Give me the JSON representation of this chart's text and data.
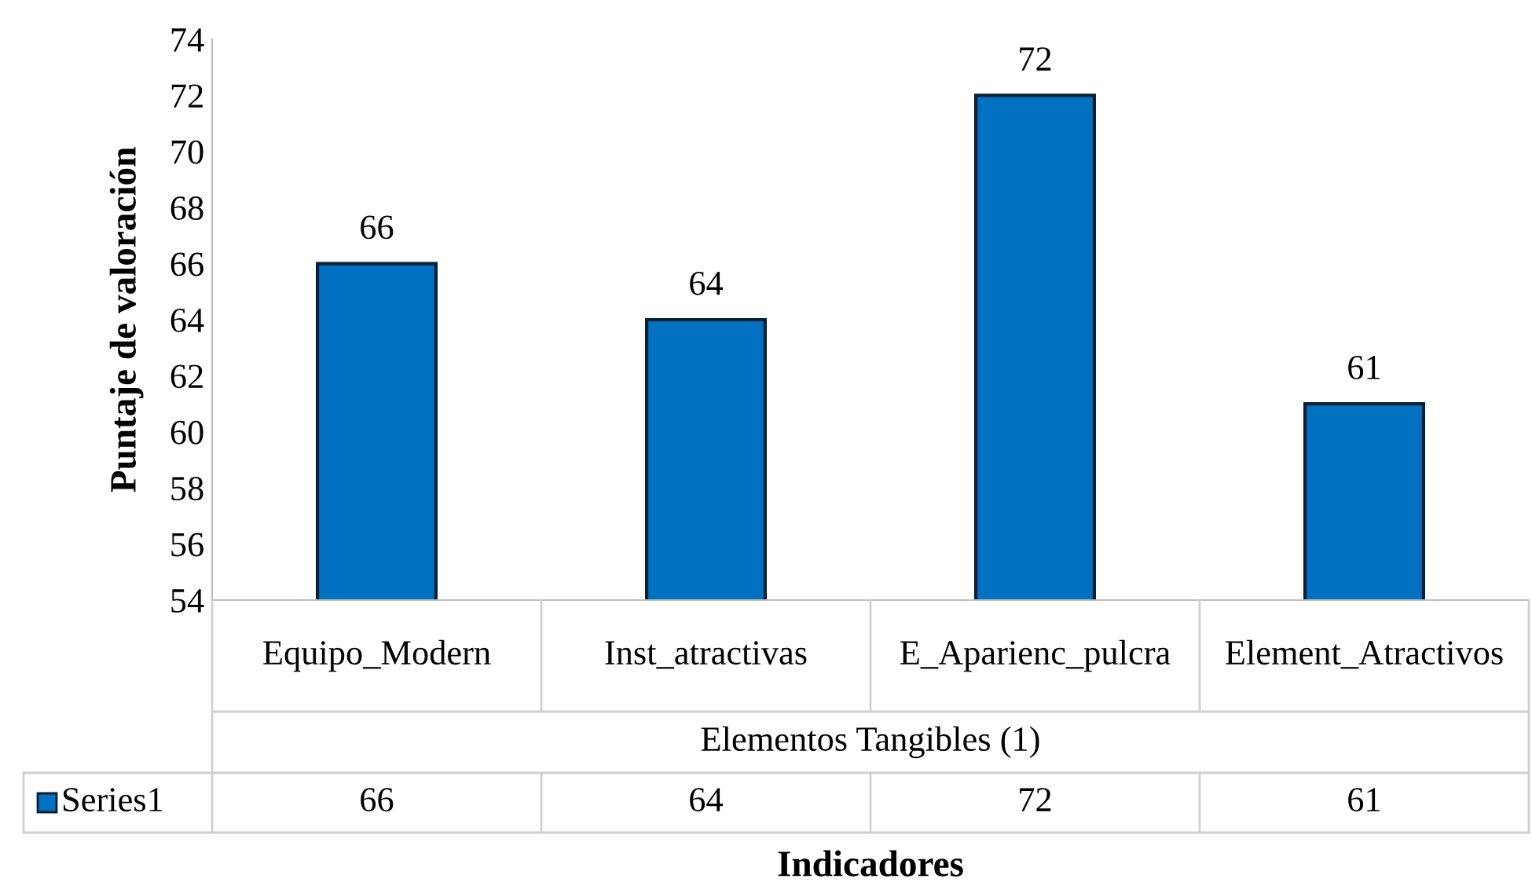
{
  "chart_data": {
    "type": "bar",
    "categories": [
      "Equipo_Modern",
      "Inst_atractivas",
      "E_Aparienc_pulcra",
      "Element_Atractivos"
    ],
    "series": [
      {
        "name": "Series1",
        "color": "#0070c0",
        "values": [
          66,
          64,
          72,
          61
        ]
      }
    ],
    "ylim": [
      54,
      74
    ],
    "yticks": [
      54,
      56,
      58,
      60,
      62,
      64,
      66,
      68,
      70,
      72,
      74
    ],
    "ylabel": "Puntaje de valoración",
    "xlabel": "Indicadores",
    "annotations": [
      "Elementos Tangibles (1)",
      "66",
      "64",
      "72",
      "61"
    ],
    "data_labels": true,
    "grid": false
  }
}
